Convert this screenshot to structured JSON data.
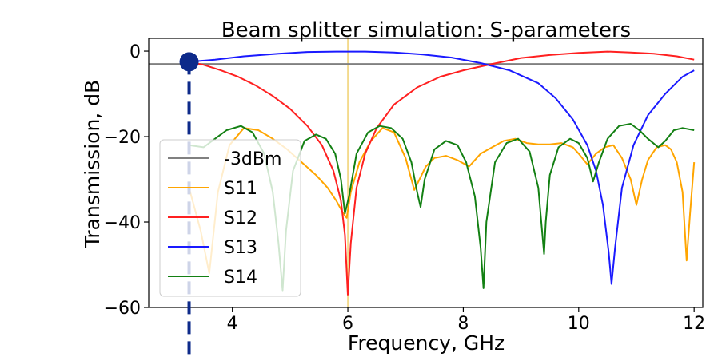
{
  "chart_data": {
    "type": "line",
    "title": "Beam splitter simulation:  S-parameters",
    "xlabel": "Frequency, GHz",
    "ylabel": "Transmission, dB",
    "xlim": [
      2.55,
      12.15
    ],
    "ylim": [
      -60,
      3
    ],
    "xticks": [
      4,
      6,
      8,
      10,
      12
    ],
    "yticks": [
      0,
      -20,
      -40,
      -60
    ],
    "xtick_labels": [
      "4",
      "6",
      "8",
      "10",
      "12"
    ],
    "ytick_labels": [
      "0",
      "−20",
      "−40",
      "−60"
    ],
    "grid": false,
    "legend_position": "lower-left",
    "vertical_marker": {
      "x": 6.0,
      "color": "#f0d070"
    },
    "point_marker": {
      "x": 3.25,
      "y": -2.5,
      "color": "#0d2a8a"
    },
    "series": [
      {
        "name": "-3dBm",
        "color": "#808080",
        "x": [
          2.5,
          12.2
        ],
        "y": [
          -3,
          -3
        ]
      },
      {
        "name": "S11",
        "color": "#ffa500",
        "x": [
          3.25,
          3.45,
          3.6,
          3.75,
          3.95,
          4.2,
          4.45,
          4.7,
          4.95,
          5.2,
          5.45,
          5.65,
          5.8,
          5.92,
          5.98,
          6.05,
          6.2,
          6.4,
          6.6,
          6.8,
          7.0,
          7.15,
          7.35,
          7.5,
          7.7,
          7.9,
          8.1,
          8.3,
          8.5,
          8.7,
          8.9,
          9.1,
          9.3,
          9.5,
          9.7,
          9.9,
          10.0,
          10.15,
          10.3,
          10.45,
          10.6,
          10.75,
          10.9,
          11.0,
          11.1,
          11.2,
          11.35,
          11.5,
          11.6,
          11.7,
          11.8,
          11.87,
          11.93,
          12.0
        ],
        "y": [
          -32,
          -42,
          -52,
          -33,
          -22,
          -18,
          -18.5,
          -20.5,
          -23,
          -26,
          -29,
          -32,
          -35,
          -38,
          -39,
          -33,
          -26,
          -21,
          -18,
          -19,
          -25,
          -32.5,
          -27,
          -25,
          -24.5,
          -25.5,
          -27,
          -24,
          -22.5,
          -21,
          -20.5,
          -21.5,
          -21.8,
          -21.8,
          -21.5,
          -22.5,
          -24,
          -26.5,
          -24,
          -22.5,
          -22,
          -25,
          -30,
          -36,
          -30,
          -25.5,
          -22.5,
          -22,
          -23,
          -26,
          -33,
          -49,
          -38,
          -26
        ]
      },
      {
        "name": "S12",
        "color": "#ff2020",
        "x": [
          3.25,
          3.5,
          3.8,
          4.1,
          4.4,
          4.7,
          5.0,
          5.3,
          5.55,
          5.75,
          5.88,
          5.95,
          6.0,
          6.05,
          6.15,
          6.3,
          6.5,
          6.8,
          7.2,
          7.6,
          8.0,
          8.5,
          9.0,
          9.5,
          10.0,
          10.5,
          10.9,
          11.3,
          11.7,
          12.0
        ],
        "y": [
          -2.5,
          -3.2,
          -4.5,
          -6,
          -8,
          -10.5,
          -13.5,
          -17.5,
          -22,
          -28,
          -35,
          -43,
          -57,
          -45,
          -32,
          -24,
          -18,
          -12.5,
          -8.5,
          -6,
          -4.5,
          -3,
          -1.6,
          -0.9,
          -0.4,
          -0.1,
          -0.3,
          -0.6,
          -1.2,
          -2
        ]
      },
      {
        "name": "S13",
        "color": "#1a1aff",
        "x": [
          3.25,
          3.7,
          4.2,
          4.8,
          5.3,
          5.8,
          6.3,
          6.8,
          7.3,
          7.8,
          8.3,
          8.8,
          9.3,
          9.6,
          9.9,
          10.15,
          10.3,
          10.42,
          10.52,
          10.57,
          10.63,
          10.75,
          10.95,
          11.2,
          11.5,
          11.8,
          12.0
        ],
        "y": [
          -2.5,
          -2.0,
          -1.2,
          -0.6,
          -0.2,
          -0.1,
          -0.1,
          -0.3,
          -0.8,
          -1.5,
          -2.8,
          -4.5,
          -7.5,
          -11,
          -16,
          -22,
          -28,
          -36,
          -47,
          -54.5,
          -46,
          -32,
          -22,
          -15,
          -10,
          -6,
          -4.5
        ]
      },
      {
        "name": "S14",
        "color": "#138013",
        "x": [
          3.25,
          3.5,
          3.7,
          3.9,
          4.15,
          4.35,
          4.55,
          4.7,
          4.8,
          4.87,
          4.93,
          5.05,
          5.25,
          5.45,
          5.62,
          5.78,
          5.88,
          5.95,
          6.02,
          6.15,
          6.35,
          6.55,
          6.75,
          6.95,
          7.1,
          7.2,
          7.26,
          7.33,
          7.5,
          7.7,
          7.9,
          8.05,
          8.2,
          8.3,
          8.35,
          8.4,
          8.55,
          8.75,
          8.95,
          9.15,
          9.3,
          9.4,
          9.43,
          9.5,
          9.65,
          9.85,
          10.0,
          10.15,
          10.25,
          10.35,
          10.5,
          10.7,
          10.9,
          11.05,
          11.2,
          11.38,
          11.5,
          11.65,
          11.8,
          12.0
        ],
        "y": [
          -22,
          -22.5,
          -20.5,
          -18.5,
          -17.5,
          -19,
          -24,
          -33,
          -45,
          -56,
          -42,
          -28,
          -21,
          -19.5,
          -20.5,
          -24,
          -30,
          -38,
          -34,
          -24,
          -19,
          -17.5,
          -18,
          -20.5,
          -26,
          -33,
          -36.5,
          -30,
          -23,
          -21,
          -22,
          -26,
          -34,
          -46,
          -55.5,
          -40,
          -26,
          -21.5,
          -20.5,
          -23.5,
          -32,
          -47.5,
          -40,
          -29,
          -22.5,
          -20.5,
          -21.5,
          -25,
          -30.5,
          -26,
          -20.5,
          -17.5,
          -17,
          -18.5,
          -20.5,
          -22.5,
          -21,
          -18.5,
          -18,
          -18.5
        ]
      }
    ]
  }
}
